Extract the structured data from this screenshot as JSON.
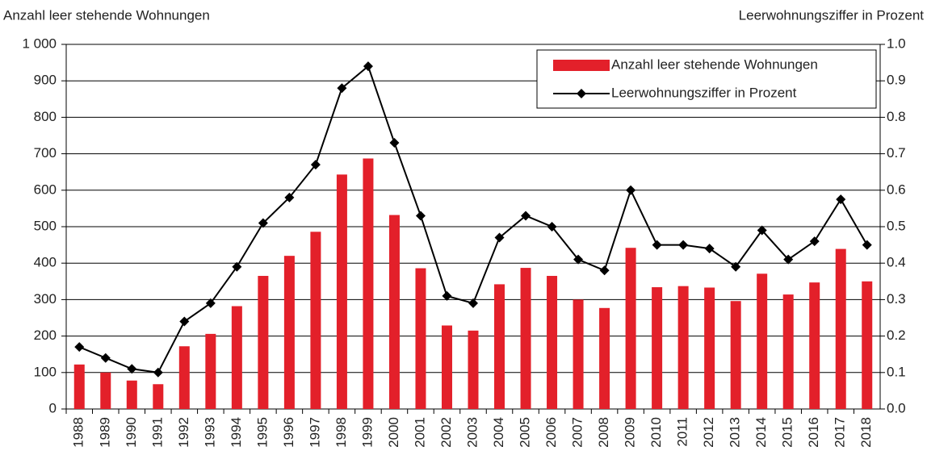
{
  "chart_data": {
    "type": "bar_line",
    "ylabel": "Anzahl leer stehende Wohnungen",
    "y2label": "Leerwohnungsziffer in Prozent",
    "categories": [
      "1988",
      "1989",
      "1990",
      "1991",
      "1992",
      "1993",
      "1994",
      "1995",
      "1996",
      "1997",
      "1998",
      "1999",
      "2000",
      "2001",
      "2002",
      "2003",
      "2004",
      "2005",
      "2006",
      "2007",
      "2008",
      "2009",
      "2010",
      "2011",
      "2012",
      "2013",
      "2014",
      "2015",
      "2016",
      "2017",
      "2018"
    ],
    "series": [
      {
        "name": "Anzahl leer stehende Wohnungen",
        "type": "bar",
        "color": "#e3202a",
        "axis": "y",
        "values": [
          122,
          100,
          78,
          68,
          172,
          206,
          282,
          365,
          420,
          486,
          643,
          687,
          532,
          386,
          229,
          215,
          342,
          387,
          365,
          300,
          277,
          442,
          334,
          337,
          333,
          296,
          371,
          314,
          347,
          439,
          350
        ]
      },
      {
        "name": "Leerwohnungsziffer in Prozent",
        "type": "line",
        "color": "#000000",
        "axis": "y2",
        "values": [
          0.17,
          0.14,
          0.11,
          0.1,
          0.24,
          0.29,
          0.39,
          0.51,
          0.58,
          0.67,
          0.88,
          0.94,
          0.73,
          0.53,
          0.31,
          0.29,
          0.47,
          0.53,
          0.5,
          0.41,
          0.38,
          0.6,
          0.45,
          0.45,
          0.44,
          0.39,
          0.49,
          0.41,
          0.46,
          0.575,
          0.45
        ]
      }
    ],
    "ylim": [
      0,
      1000
    ],
    "yticks": [
      0,
      100,
      200,
      300,
      400,
      500,
      600,
      700,
      800,
      900,
      {
        "value": 1000,
        "label": "1 000"
      }
    ],
    "y2lim": [
      0,
      1
    ],
    "y2ticks": [
      {
        "value": 0,
        "label": "0.0"
      },
      0.1,
      0.2,
      0.3,
      0.4,
      0.5,
      0.6,
      0.7,
      0.8,
      0.9,
      {
        "value": 1,
        "label": "1.0"
      }
    ],
    "grid": true,
    "legend": "upper right"
  }
}
